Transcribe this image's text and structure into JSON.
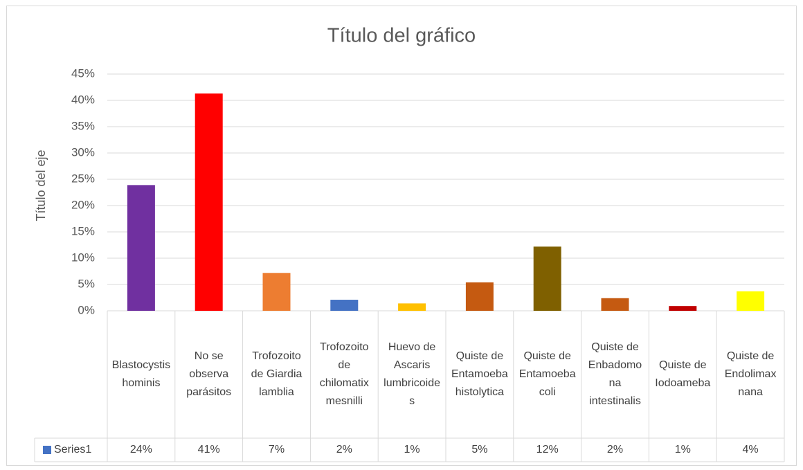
{
  "chart_data": {
    "type": "bar",
    "title": "Título del gráfico",
    "y_axis_label": "Título del eje",
    "categories": [
      "Blastocystis hominis",
      "No se observa parásitos",
      "Trofozoito de Giardia lamblia",
      "Trofozoito de chilomatix mesnilli",
      "Huevo de Ascaris lumbricoides",
      "Quiste de Entamoeba histolytica",
      "Quiste de Entamoeba coli",
      "Quiste de Enbadomona intestinalis",
      "Quiste de Iodoameba",
      "Quiste de Endolimax nana"
    ],
    "series": [
      {
        "name": "Series1",
        "color": "#4472c4",
        "colors": [
          "#7030a0",
          "#ff0000",
          "#ed7d31",
          "#4472c4",
          "#ffc000",
          "#c55a11",
          "#7f6000",
          "#c55a11",
          "#c00000",
          "#ffff00"
        ],
        "values": [
          23.9,
          41.3,
          7.2,
          2.1,
          1.4,
          5.4,
          12.2,
          2.4,
          0.9,
          3.7
        ],
        "value_labels": [
          "24%",
          "41%",
          "7%",
          "2%",
          "1%",
          "5%",
          "12%",
          "2%",
          "1%",
          "4%"
        ]
      }
    ],
    "ylim": [
      0,
      45
    ],
    "yticks": [
      {
        "value": 0,
        "label": "0%"
      },
      {
        "value": 5,
        "label": "5%"
      },
      {
        "value": 10,
        "label": "10%"
      },
      {
        "value": 15,
        "label": "15%"
      },
      {
        "value": 20,
        "label": "20%"
      },
      {
        "value": 25,
        "label": "25%"
      },
      {
        "value": 30,
        "label": "30%"
      },
      {
        "value": 35,
        "label": "35%"
      },
      {
        "value": 40,
        "label": "40%"
      },
      {
        "value": 45,
        "label": "45%"
      }
    ],
    "grid": true,
    "data_table": true
  }
}
